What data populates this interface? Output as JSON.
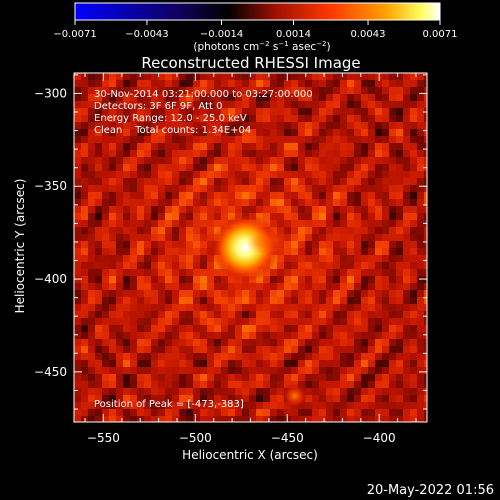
{
  "chart_data": {
    "type": "heatmap",
    "title": "Reconstructed RHESSI Image",
    "xlabel": "Heliocentric X (arcsec)",
    "ylabel": "Heliocentric Y (arcsec)",
    "xlim": [
      -566,
      -374
    ],
    "ylim": [
      -477,
      -289
    ],
    "x_ticks": [
      -550,
      -500,
      -450,
      -400
    ],
    "x_tick_labels": [
      "−550",
      "−500",
      "−450",
      "−400"
    ],
    "y_ticks": [
      -300,
      -350,
      -400,
      -450
    ],
    "y_tick_labels": [
      "−300",
      "−350",
      "−400",
      "−450"
    ],
    "colorbar": {
      "range": [
        -0.0071,
        0.0071
      ],
      "ticks": [
        -0.0071,
        -0.0043,
        -0.0014,
        0.0014,
        0.0043,
        0.0071
      ],
      "tick_labels": [
        "−0.0071",
        "−0.0043",
        "−0.0014",
        "0.0014",
        "0.0043",
        "0.0071"
      ],
      "unit_parts": {
        "a": "(photons cm",
        "b": "−2",
        "c": " s",
        "d": "−1",
        "e": " asec",
        "f": "−2",
        "g": ")"
      },
      "colors": [
        "#0000ff",
        "#000000",
        "#a01000",
        "#ff3800",
        "#ffa000",
        "#ffff60",
        "#ffffff"
      ]
    },
    "peak": {
      "x": -473,
      "y": -383
    },
    "secondary_source": {
      "x": -446,
      "y": -463
    },
    "annotations": {
      "line1": "30-Nov-2014 03:21:00.000 to 03:27:00.000",
      "line2": "Detectors: 3F 6F 9F, Att 0",
      "line3": "Energy Range: 12.0 - 25.0 keV",
      "line4": "Clean    Total counts: 1.34E+04",
      "peak_label": "Position of Peak = [-473,-383]"
    },
    "timestamp": "20-May-2022 01:56"
  }
}
